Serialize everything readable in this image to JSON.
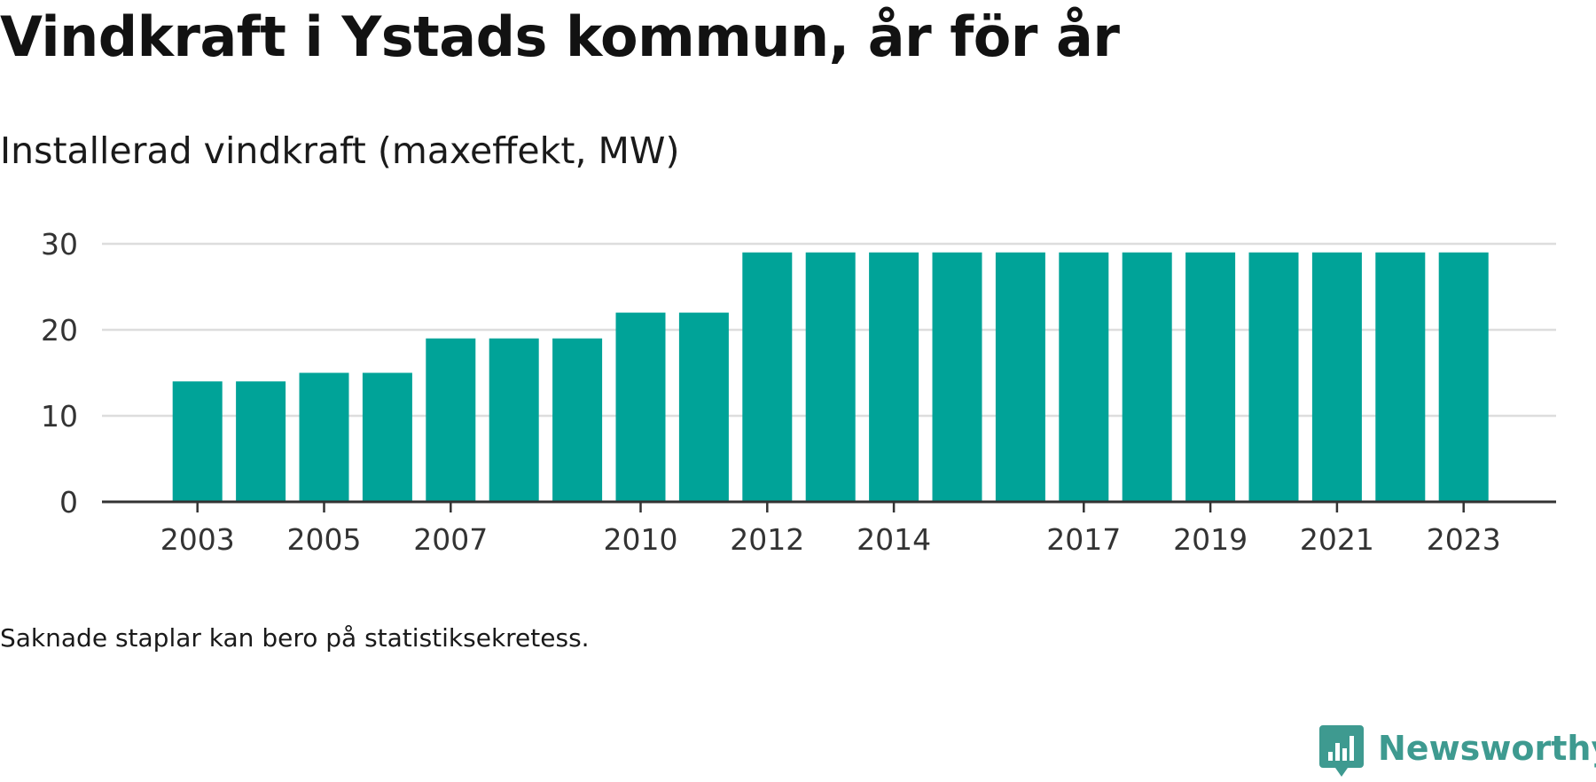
{
  "title": "Vindkraft i Ystads kommun, år för år",
  "subtitle": "Installerad vindkraft (maxeffekt, MW)",
  "footnote": "Saknade staplar kan bero på statistiksekretess.",
  "brand": {
    "name": "Newsworthy",
    "icon": "newsworthy-logo-icon",
    "color": "#3e9a90"
  },
  "chart_data": {
    "type": "bar",
    "categories": [
      "2003",
      "2004",
      "2005",
      "2006",
      "2007",
      "2008",
      "2009",
      "2010",
      "2011",
      "2012",
      "2013",
      "2014",
      "2015",
      "2016",
      "2017",
      "2018",
      "2019",
      "2020",
      "2021",
      "2022",
      "2023"
    ],
    "values": [
      14,
      14,
      15,
      15,
      19,
      19,
      19,
      22,
      22,
      29,
      29,
      29,
      29,
      29,
      29,
      29,
      29,
      29,
      29,
      29,
      29
    ],
    "title": "Vindkraft i Ystads kommun, år för år",
    "subtitle": "Installerad vindkraft (maxeffekt, MW)",
    "xlabel": "",
    "ylabel": "",
    "ylim": [
      0,
      30
    ],
    "yticks": [
      "0",
      "10",
      "20",
      "30"
    ],
    "xtick_labels": [
      "2003",
      "2005",
      "2007",
      "2010",
      "2012",
      "2014",
      "2017",
      "2019",
      "2021",
      "2023"
    ],
    "grid": true,
    "legend": "none",
    "bar_color": "#00a398",
    "grid_color": "#dddddd",
    "axis_color": "#333333"
  }
}
